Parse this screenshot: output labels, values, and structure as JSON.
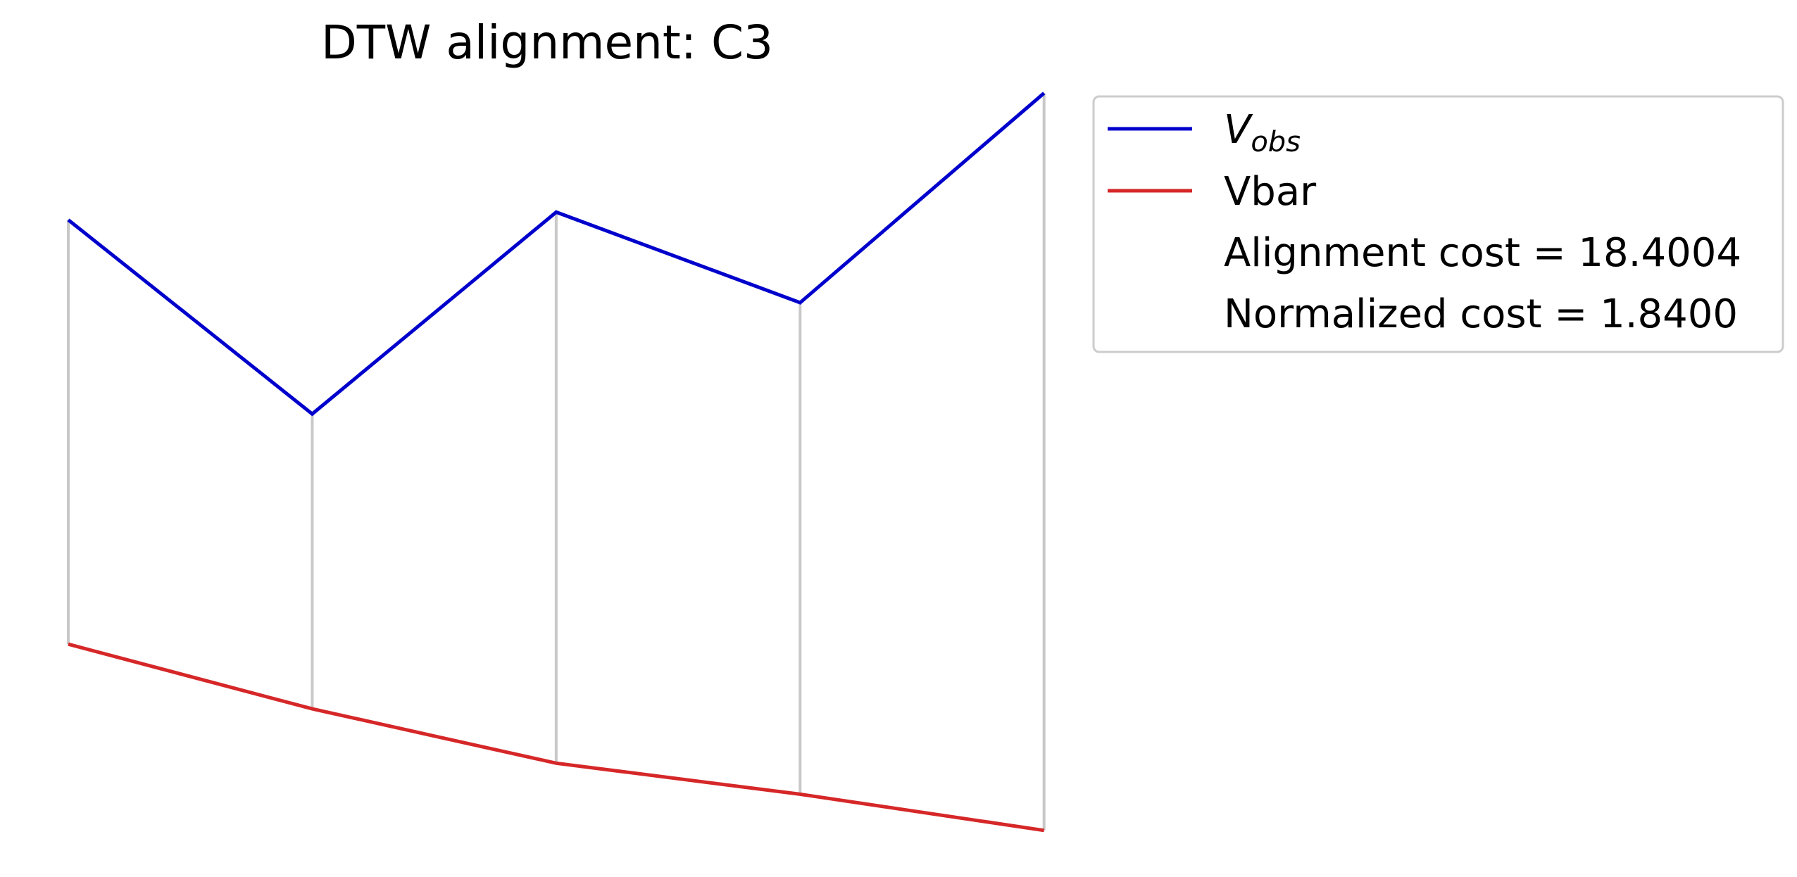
{
  "chart_data": {
    "type": "line",
    "title": "DTW alignment: C3",
    "xlabel": "",
    "ylabel": "",
    "axes_visible": false,
    "grid": false,
    "x": [
      0,
      1,
      2,
      3,
      4
    ],
    "series": [
      {
        "name": "V",
        "name_subscript": "obs",
        "color": "#0000cc",
        "values": [
          1.7,
          0.95,
          1.73,
          1.38,
          2.19
        ]
      },
      {
        "name": "Vbar",
        "color": "#d62728",
        "values": [
          0.06,
          -0.19,
          -0.4,
          -0.52,
          -0.66
        ]
      }
    ],
    "connector_color": "#c8c8c8",
    "xlim": [
      -0.28,
      4.2
    ],
    "ylim": [
      -0.84,
      2.55
    ],
    "legend": {
      "placement": "outside-upper-right",
      "extra_entries": [
        "Alignment cost = 18.4004",
        "Normalized cost = 1.8400"
      ]
    }
  }
}
